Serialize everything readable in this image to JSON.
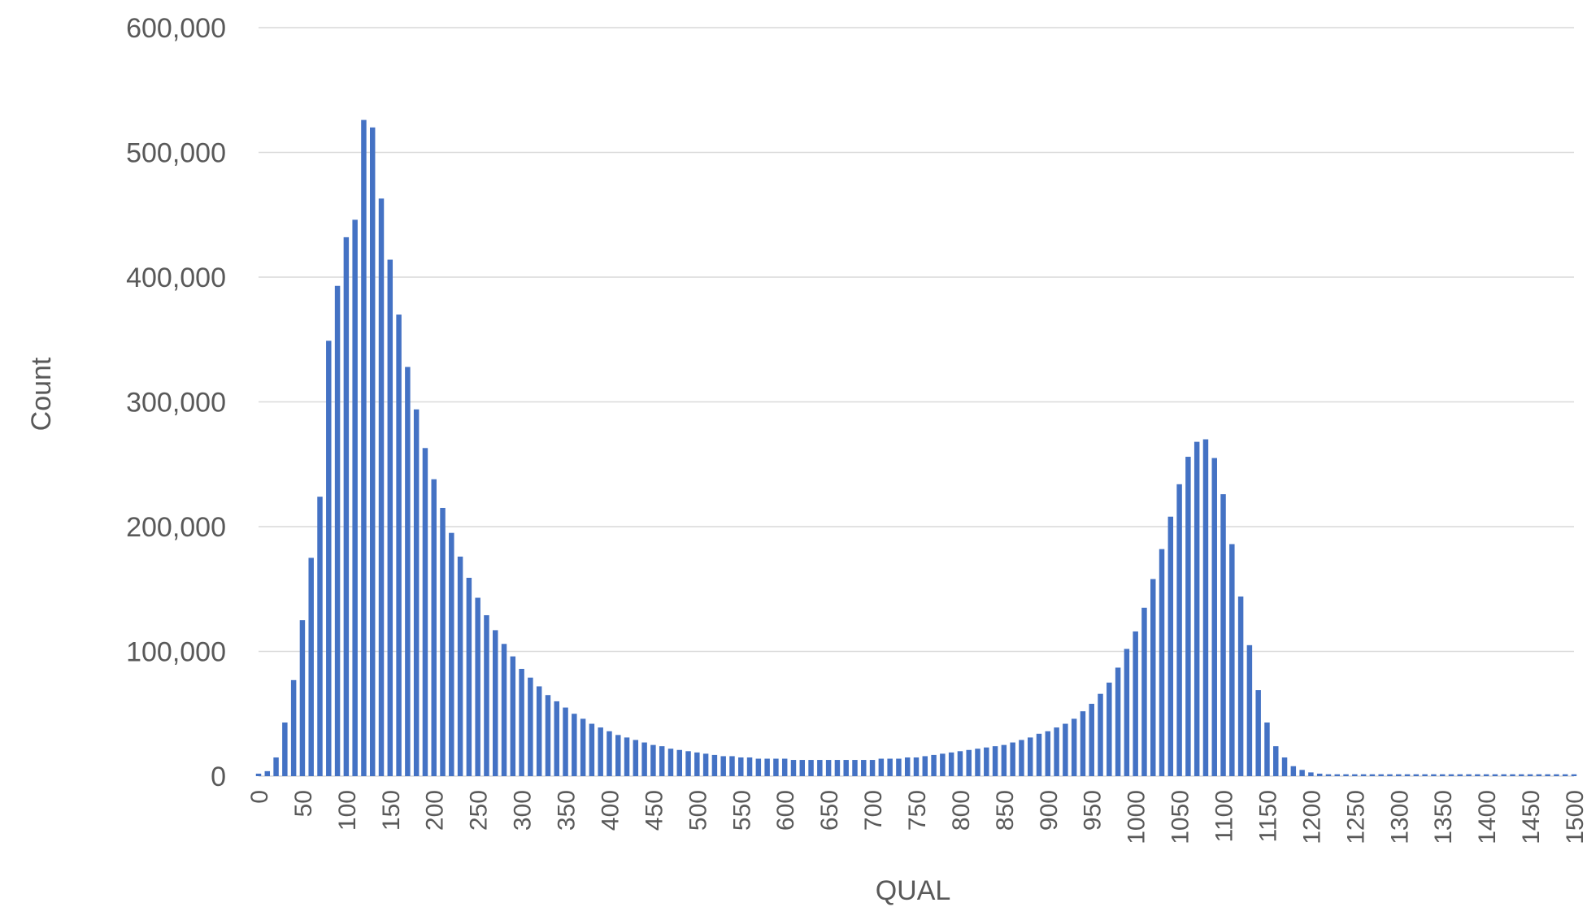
{
  "chart_data": {
    "type": "bar",
    "title": "",
    "xlabel": "QUAL",
    "ylabel": "Count",
    "ylim": [
      0,
      600000
    ],
    "y_ticks": [
      "0",
      "100,000",
      "200,000",
      "300,000",
      "400,000",
      "500,000",
      "600,000"
    ],
    "x_tick_labels": [
      "0",
      "50",
      "100",
      "150",
      "200",
      "250",
      "300",
      "350",
      "400",
      "450",
      "500",
      "550",
      "600",
      "650",
      "700",
      "750",
      "800",
      "850",
      "900",
      "950",
      "1000",
      "1050",
      "1100",
      "1150",
      "1200",
      "1250",
      "1300",
      "1350",
      "1400",
      "1450",
      "1500"
    ],
    "bin_width": 10,
    "grid": true,
    "legend": "none",
    "bar_color": "#4472C4",
    "categories": [
      0,
      10,
      20,
      30,
      40,
      50,
      60,
      70,
      80,
      90,
      100,
      110,
      120,
      130,
      140,
      150,
      160,
      170,
      180,
      190,
      200,
      210,
      220,
      230,
      240,
      250,
      260,
      270,
      280,
      290,
      300,
      310,
      320,
      330,
      340,
      350,
      360,
      370,
      380,
      390,
      400,
      410,
      420,
      430,
      440,
      450,
      460,
      470,
      480,
      490,
      500,
      510,
      520,
      530,
      540,
      550,
      560,
      570,
      580,
      590,
      600,
      610,
      620,
      630,
      640,
      650,
      660,
      670,
      680,
      690,
      700,
      710,
      720,
      730,
      740,
      750,
      760,
      770,
      780,
      790,
      800,
      810,
      820,
      830,
      840,
      850,
      860,
      870,
      880,
      890,
      900,
      910,
      920,
      930,
      940,
      950,
      960,
      970,
      980,
      990,
      1000,
      1010,
      1020,
      1030,
      1040,
      1050,
      1060,
      1070,
      1080,
      1090,
      1100,
      1110,
      1120,
      1130,
      1140,
      1150,
      1160,
      1170,
      1180,
      1190,
      1200,
      1210,
      1220,
      1230,
      1240,
      1250,
      1260,
      1270,
      1280,
      1290,
      1300,
      1310,
      1320,
      1330,
      1340,
      1350,
      1360,
      1370,
      1380,
      1390,
      1400,
      1410,
      1420,
      1430,
      1440,
      1450,
      1460,
      1470,
      1480,
      1490,
      1500
    ],
    "values": [
      2000,
      4000,
      15000,
      43000,
      77000,
      125000,
      175000,
      224000,
      349000,
      393000,
      432000,
      446000,
      526000,
      520000,
      463000,
      414000,
      370000,
      328000,
      294000,
      263000,
      238000,
      215000,
      195000,
      176000,
      159000,
      143000,
      129000,
      117000,
      106000,
      96000,
      86000,
      79000,
      72000,
      65000,
      60000,
      55000,
      50000,
      46000,
      42000,
      39000,
      36000,
      33000,
      31000,
      29000,
      27000,
      25000,
      24000,
      22000,
      21000,
      20000,
      19000,
      18000,
      17000,
      16000,
      16000,
      15000,
      15000,
      14000,
      14000,
      14000,
      14000,
      13000,
      13000,
      13000,
      13000,
      13000,
      13000,
      13000,
      13000,
      13000,
      13000,
      14000,
      14000,
      14000,
      15000,
      15000,
      16000,
      17000,
      18000,
      19000,
      20000,
      21000,
      22000,
      23000,
      24000,
      25000,
      27000,
      29000,
      31000,
      34000,
      36000,
      39000,
      42000,
      46000,
      52000,
      58000,
      66000,
      75000,
      87000,
      102000,
      116000,
      135000,
      158000,
      182000,
      208000,
      234000,
      256000,
      268000,
      270000,
      255000,
      226000,
      186000,
      144000,
      105000,
      69000,
      43000,
      24000,
      15000,
      8000,
      5000,
      3000,
      2000,
      1500,
      1500,
      1500,
      1500,
      1500,
      1500,
      1500,
      1500,
      1500,
      1500,
      1500,
      1500,
      1500,
      1500,
      1500,
      1500,
      1500,
      1500,
      1500,
      1500,
      1500,
      1500,
      1500,
      1500,
      1500,
      1500,
      1500,
      1500,
      1500
    ]
  }
}
